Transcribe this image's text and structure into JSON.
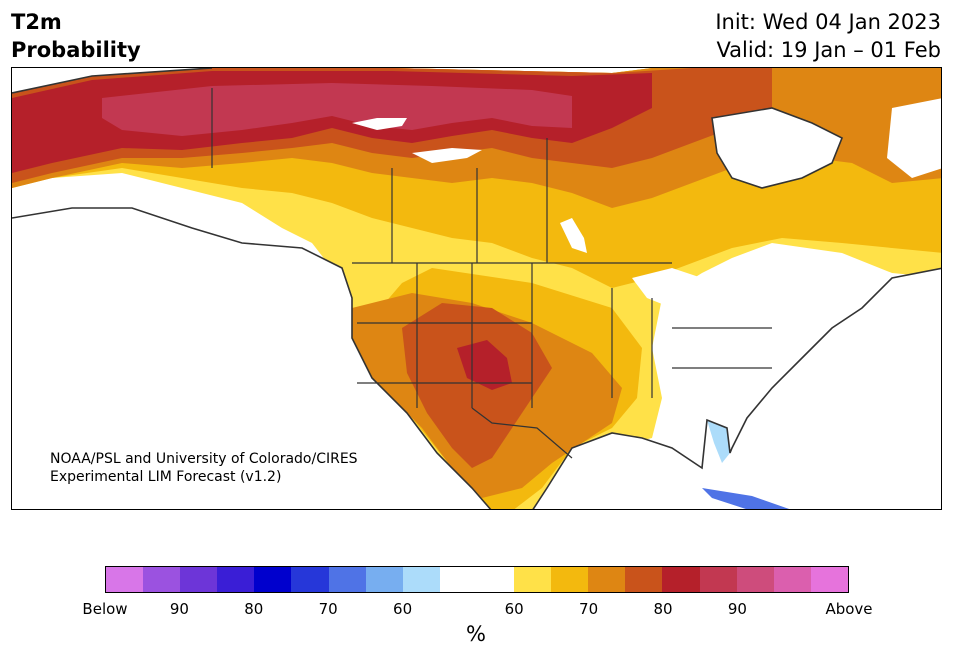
{
  "header": {
    "title_line1": "T2m",
    "title_line2": "Probability",
    "init": "Init: Wed 04 Jan 2023",
    "valid": "Valid: 19 Jan – 01 Feb"
  },
  "map": {
    "credit_line1": "NOAA/PSL and University of Colorado/CIRES",
    "credit_line2": "Experimental LIM Forecast (v1.2)",
    "region": "North America",
    "variable": "2 m temperature probability"
  },
  "colorbar": {
    "colors": [
      "#d876e8",
      "#9b52e0",
      "#6d35d8",
      "#3a1ed6",
      "#0000cd",
      "#2637d9",
      "#4f73e6",
      "#77aef0",
      "#acdcfa",
      "#ffffff",
      "#ffffff",
      "#ffe148",
      "#f3b90e",
      "#de8613",
      "#c9531b",
      "#b5202a",
      "#c23851",
      "#ce4c7c",
      "#db5fae",
      "#e673dc"
    ],
    "tick_labels": [
      "Below",
      "90",
      "80",
      "70",
      "60",
      "60",
      "70",
      "80",
      "90",
      "Above"
    ],
    "unit": "%"
  }
}
